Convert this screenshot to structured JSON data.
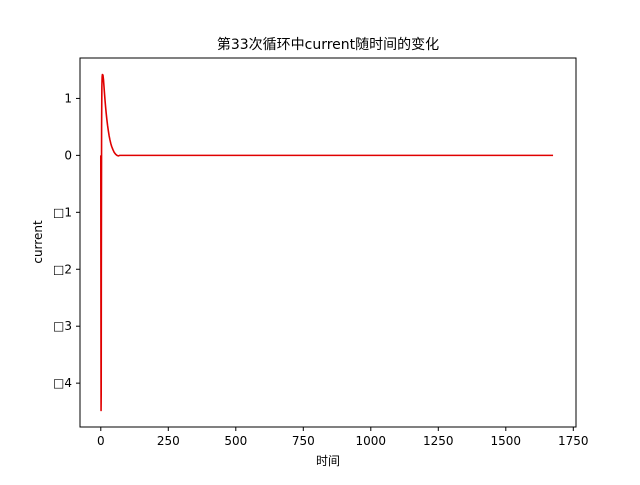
{
  "chart_data": {
    "type": "line",
    "title": "第33次循环中current随时间的变化",
    "xlabel": "时间",
    "ylabel": "current",
    "xlim": [
      -77,
      1760
    ],
    "ylim": [
      -4.77,
      1.71
    ],
    "xticks": [
      0,
      250,
      500,
      750,
      1000,
      1250,
      1500,
      1750
    ],
    "xtick_labels": [
      "0",
      "250",
      "500",
      "750",
      "1000",
      "1250",
      "1500",
      "1750"
    ],
    "yticks": [
      1,
      0,
      -1,
      -2,
      -3,
      -4
    ],
    "ytick_labels": [
      "1",
      "0",
      "□1",
      "□2",
      "□3",
      "□4"
    ],
    "grid": false,
    "legend": "none",
    "series": [
      {
        "color": "#e00000",
        "x": [
          0,
          1,
          1.5,
          2,
          3,
          4,
          5,
          6,
          8,
          10,
          12,
          14,
          16,
          18,
          20,
          22,
          25,
          28,
          31,
          34,
          37,
          40,
          45,
          50,
          55,
          60,
          65,
          70,
          100,
          200,
          300,
          400,
          500,
          600,
          700,
          800,
          900,
          1000,
          1100,
          1200,
          1300,
          1400,
          1500,
          1600,
          1675
        ],
        "y": [
          0,
          -4.48,
          -4.2,
          -2.0,
          0.5,
          1.2,
          1.38,
          1.42,
          1.41,
          1.33,
          1.2,
          1.07,
          0.95,
          0.84,
          0.74,
          0.65,
          0.53,
          0.43,
          0.34,
          0.27,
          0.21,
          0.16,
          0.1,
          0.05,
          0.02,
          0.0,
          -0.01,
          0.0,
          0.0,
          0.0,
          0.0,
          0.0,
          0.0,
          0.0,
          0.0,
          0.0,
          0.0,
          0.0,
          0.0,
          0.0,
          0.0,
          0.0,
          0.0,
          0.0,
          0.0
        ]
      }
    ]
  }
}
